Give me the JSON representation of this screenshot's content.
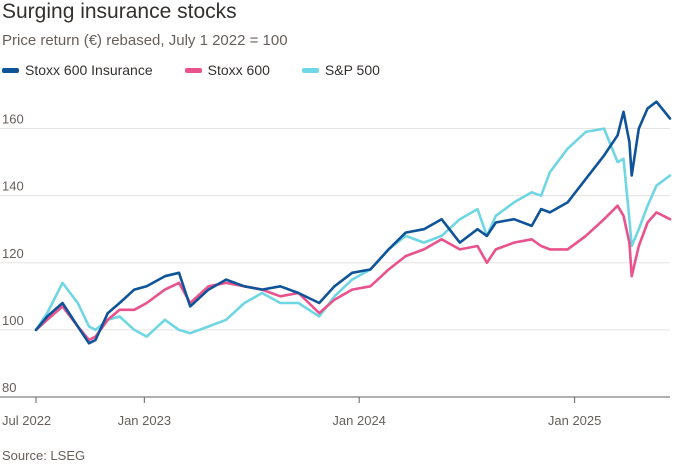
{
  "title": "Surging insurance stocks",
  "subtitle": "Price return (€) rebased, July 1 2022 = 100",
  "source": "Source: LSEG",
  "chart_data": {
    "type": "line",
    "title": "Surging insurance stocks",
    "subtitle": "Price return (€) rebased, July 1 2022 = 100",
    "xlabel": "",
    "ylabel": "",
    "ylim": [
      80,
      170
    ],
    "xlim": [
      "2022-07-01",
      "2025-06-12"
    ],
    "grid": true,
    "legend_position": "top-left",
    "y_ticks": [
      80,
      100,
      120,
      140,
      160
    ],
    "x_ticks": [
      {
        "date": "2022-07-01",
        "label": "Jul 2022"
      },
      {
        "date": "2023-01-01",
        "label": "Jan 2023"
      },
      {
        "date": "2024-01-01",
        "label": "Jan 2024"
      },
      {
        "date": "2025-01-01",
        "label": "Jan 2025"
      }
    ],
    "series": [
      {
        "name": "Stoxx 600 Insurance",
        "color": "#0f5499",
        "points": [
          [
            "2022-07-01",
            100
          ],
          [
            "2022-07-20",
            104
          ],
          [
            "2022-08-15",
            108
          ],
          [
            "2022-09-10",
            101
          ],
          [
            "2022-09-29",
            96
          ],
          [
            "2022-10-10",
            97
          ],
          [
            "2022-10-31",
            105
          ],
          [
            "2022-11-20",
            108
          ],
          [
            "2022-12-15",
            112
          ],
          [
            "2023-01-05",
            113
          ],
          [
            "2023-02-05",
            116
          ],
          [
            "2023-03-01",
            117
          ],
          [
            "2023-03-20",
            107
          ],
          [
            "2023-04-20",
            112
          ],
          [
            "2023-05-20",
            115
          ],
          [
            "2023-06-20",
            113
          ],
          [
            "2023-07-20",
            112
          ],
          [
            "2023-08-20",
            113
          ],
          [
            "2023-09-20",
            111
          ],
          [
            "2023-10-25",
            108
          ],
          [
            "2023-11-20",
            113
          ],
          [
            "2023-12-20",
            117
          ],
          [
            "2024-01-20",
            118
          ],
          [
            "2024-02-20",
            124
          ],
          [
            "2024-03-20",
            129
          ],
          [
            "2024-04-20",
            130
          ],
          [
            "2024-05-20",
            133
          ],
          [
            "2024-06-20",
            126
          ],
          [
            "2024-07-20",
            130
          ],
          [
            "2024-08-05",
            128
          ],
          [
            "2024-08-20",
            132
          ],
          [
            "2024-09-20",
            133
          ],
          [
            "2024-10-20",
            131
          ],
          [
            "2024-11-05",
            136
          ],
          [
            "2024-11-20",
            135
          ],
          [
            "2024-12-20",
            138
          ],
          [
            "2025-01-20",
            145
          ],
          [
            "2025-02-20",
            152
          ],
          [
            "2025-03-15",
            158
          ],
          [
            "2025-03-25",
            165
          ],
          [
            "2025-04-04",
            156
          ],
          [
            "2025-04-08",
            146
          ],
          [
            "2025-04-20",
            160
          ],
          [
            "2025-05-05",
            166
          ],
          [
            "2025-05-20",
            168
          ],
          [
            "2025-06-12",
            163
          ]
        ]
      },
      {
        "name": "Stoxx 600",
        "color": "#e9528c",
        "points": [
          [
            "2022-07-01",
            100
          ],
          [
            "2022-07-20",
            103
          ],
          [
            "2022-08-15",
            107
          ],
          [
            "2022-09-10",
            101
          ],
          [
            "2022-09-29",
            97
          ],
          [
            "2022-10-10",
            98
          ],
          [
            "2022-10-31",
            103
          ],
          [
            "2022-11-20",
            106
          ],
          [
            "2022-12-15",
            106
          ],
          [
            "2023-01-05",
            108
          ],
          [
            "2023-02-05",
            112
          ],
          [
            "2023-03-01",
            114
          ],
          [
            "2023-03-20",
            108
          ],
          [
            "2023-04-20",
            113
          ],
          [
            "2023-05-20",
            114
          ],
          [
            "2023-06-20",
            113
          ],
          [
            "2023-07-20",
            112
          ],
          [
            "2023-08-20",
            110
          ],
          [
            "2023-09-20",
            111
          ],
          [
            "2023-10-25",
            105
          ],
          [
            "2023-11-20",
            109
          ],
          [
            "2023-12-20",
            112
          ],
          [
            "2024-01-20",
            113
          ],
          [
            "2024-02-20",
            118
          ],
          [
            "2024-03-20",
            122
          ],
          [
            "2024-04-20",
            124
          ],
          [
            "2024-05-20",
            127
          ],
          [
            "2024-06-20",
            124
          ],
          [
            "2024-07-20",
            125
          ],
          [
            "2024-08-05",
            120
          ],
          [
            "2024-08-20",
            124
          ],
          [
            "2024-09-20",
            126
          ],
          [
            "2024-10-20",
            127
          ],
          [
            "2024-11-05",
            125
          ],
          [
            "2024-11-20",
            124
          ],
          [
            "2024-12-20",
            124
          ],
          [
            "2025-01-20",
            128
          ],
          [
            "2025-02-20",
            133
          ],
          [
            "2025-03-15",
            137
          ],
          [
            "2025-03-25",
            134
          ],
          [
            "2025-04-04",
            126
          ],
          [
            "2025-04-08",
            116
          ],
          [
            "2025-04-20",
            125
          ],
          [
            "2025-05-05",
            132
          ],
          [
            "2025-05-20",
            135
          ],
          [
            "2025-06-12",
            133
          ]
        ]
      },
      {
        "name": "S&P 500",
        "color": "#6fd6e3",
        "points": [
          [
            "2022-07-01",
            100
          ],
          [
            "2022-07-20",
            105
          ],
          [
            "2022-08-15",
            114
          ],
          [
            "2022-09-10",
            108
          ],
          [
            "2022-09-29",
            101
          ],
          [
            "2022-10-10",
            100
          ],
          [
            "2022-10-31",
            103
          ],
          [
            "2022-11-20",
            104
          ],
          [
            "2022-12-15",
            100
          ],
          [
            "2023-01-05",
            98
          ],
          [
            "2023-02-05",
            103
          ],
          [
            "2023-03-01",
            100
          ],
          [
            "2023-03-20",
            99
          ],
          [
            "2023-04-20",
            101
          ],
          [
            "2023-05-20",
            103
          ],
          [
            "2023-06-20",
            108
          ],
          [
            "2023-07-20",
            111
          ],
          [
            "2023-08-20",
            108
          ],
          [
            "2023-09-20",
            108
          ],
          [
            "2023-10-25",
            104
          ],
          [
            "2023-11-20",
            110
          ],
          [
            "2023-12-20",
            115
          ],
          [
            "2024-01-20",
            118
          ],
          [
            "2024-02-20",
            124
          ],
          [
            "2024-03-20",
            128
          ],
          [
            "2024-04-20",
            126
          ],
          [
            "2024-05-20",
            128
          ],
          [
            "2024-06-20",
            133
          ],
          [
            "2024-07-20",
            136
          ],
          [
            "2024-08-05",
            128
          ],
          [
            "2024-08-20",
            134
          ],
          [
            "2024-09-20",
            138
          ],
          [
            "2024-10-20",
            141
          ],
          [
            "2024-11-05",
            140
          ],
          [
            "2024-11-20",
            147
          ],
          [
            "2024-12-20",
            154
          ],
          [
            "2025-01-20",
            159
          ],
          [
            "2025-02-20",
            160
          ],
          [
            "2025-03-15",
            150
          ],
          [
            "2025-03-25",
            151
          ],
          [
            "2025-04-04",
            133
          ],
          [
            "2025-04-08",
            125
          ],
          [
            "2025-04-20",
            130
          ],
          [
            "2025-05-05",
            137
          ],
          [
            "2025-05-20",
            143
          ],
          [
            "2025-06-12",
            146
          ]
        ]
      }
    ]
  }
}
